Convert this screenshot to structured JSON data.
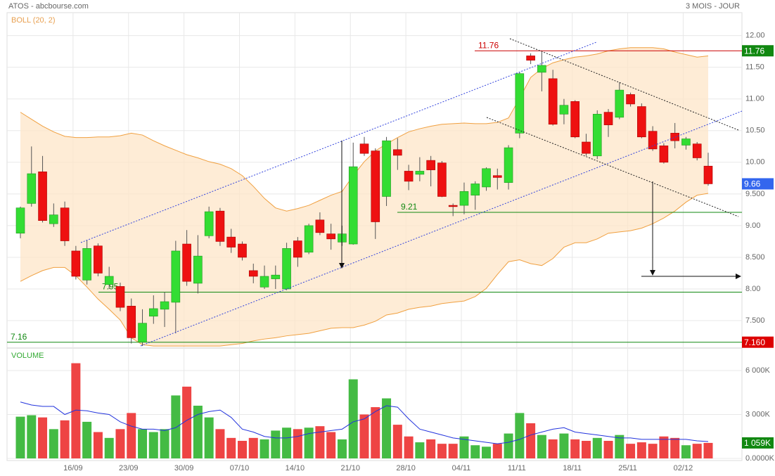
{
  "chart_data": {
    "type": "candlestick",
    "title": "ATOS - abcbourse.com",
    "subtitle": "3 MOIS - JOUR",
    "categories": [
      null,
      null,
      null,
      null,
      null,
      "16/09",
      null,
      null,
      null,
      null,
      "23/09",
      null,
      null,
      null,
      null,
      "30/09",
      null,
      null,
      null,
      null,
      "07/10",
      null,
      null,
      null,
      null,
      "14/10",
      null,
      null,
      null,
      null,
      "21/10",
      null,
      null,
      null,
      null,
      "28/10",
      null,
      null,
      null,
      null,
      "04/11",
      null,
      null,
      null,
      null,
      "11/11",
      null,
      null,
      null,
      null,
      "18/11",
      null,
      null,
      null,
      null,
      "25/11",
      null,
      null,
      null,
      null,
      "02/12",
      null,
      null
    ],
    "open": [
      8.88,
      9.35,
      9.85,
      9.03,
      9.28,
      8.6,
      8.14,
      8.68,
      8.07,
      8.04,
      7.73,
      7.16,
      7.57,
      7.68,
      7.79,
      8.71,
      8.09,
      8.84,
      9.23,
      8.82,
      8.71,
      8.29,
      8.03,
      8.16,
      8.0,
      8.76,
      8.58,
      9.09,
      8.87,
      8.74,
      8.71,
      10.29,
      10.18,
      9.46,
      10.2,
      9.86,
      9.81,
      10.03,
      9.99,
      9.32,
      9.32,
      9.48,
      9.61,
      9.79,
      9.68,
      10.46,
      11.68,
      11.42,
      11.32,
      10.76,
      10.96,
      10.32,
      10.1,
      10.79,
      10.71,
      11.07,
      10.88,
      10.49,
      10.26,
      10.46,
      10.27,
      10.29,
      9.94
    ],
    "high": [
      9.3,
      10.25,
      10.1,
      9.35,
      9.38,
      8.68,
      8.77,
      8.72,
      8.35,
      8.1,
      7.85,
      7.68,
      7.9,
      7.95,
      8.76,
      8.93,
      8.85,
      9.3,
      9.28,
      8.95,
      8.75,
      8.4,
      8.37,
      8.37,
      8.73,
      8.82,
      9.03,
      9.21,
      9.03,
      9.0,
      10.31,
      10.4,
      10.22,
      10.4,
      10.38,
      9.96,
      10.08,
      10.1,
      10.02,
      9.35,
      9.68,
      9.7,
      9.92,
      9.9,
      10.27,
      11.42,
      11.72,
      11.74,
      11.46,
      11.0,
      10.98,
      10.45,
      10.82,
      10.84,
      11.26,
      11.1,
      10.93,
      10.57,
      10.3,
      10.62,
      10.4,
      10.32,
      10.15
    ],
    "low": [
      8.8,
      9.3,
      9.05,
      8.98,
      8.68,
      8.15,
      8.07,
      8.2,
      8.0,
      7.65,
      7.14,
      7.1,
      7.45,
      7.4,
      7.3,
      8.05,
      7.93,
      8.8,
      8.68,
      8.57,
      8.45,
      8.09,
      8.0,
      8.0,
      7.98,
      8.35,
      8.55,
      8.85,
      8.62,
      8.68,
      8.7,
      10.1,
      8.79,
      9.31,
      9.88,
      9.56,
      9.7,
      9.62,
      9.45,
      9.15,
      9.18,
      9.25,
      9.55,
      9.57,
      9.57,
      10.38,
      11.55,
      11.12,
      10.58,
      10.6,
      10.38,
      10.1,
      10.05,
      10.4,
      10.68,
      10.88,
      10.38,
      10.18,
      9.98,
      10.22,
      10.2,
      10.03,
      9.63
    ],
    "close": [
      9.28,
      9.82,
      9.08,
      9.17,
      8.76,
      8.2,
      8.64,
      8.25,
      8.2,
      7.71,
      7.23,
      7.46,
      7.69,
      7.8,
      8.6,
      8.12,
      8.52,
      9.22,
      8.75,
      8.66,
      8.5,
      8.2,
      8.2,
      8.22,
      8.64,
      8.5,
      9.0,
      8.89,
      8.79,
      8.87,
      9.93,
      10.14,
      9.06,
      10.34,
      10.11,
      9.7,
      9.86,
      9.88,
      9.46,
      9.3,
      9.54,
      9.66,
      9.9,
      9.76,
      10.23,
      11.4,
      11.61,
      11.53,
      10.6,
      10.9,
      10.4,
      10.14,
      10.76,
      10.59,
      11.14,
      10.92,
      10.4,
      10.21,
      10.0,
      10.34,
      10.37,
      10.07,
      9.66
    ],
    "up_color": "#33dd33",
    "down_color": "#ee1111",
    "ylim": [
      7.09,
      12.14
    ],
    "yticks": [
      {
        "value": 12,
        "label": "12.00"
      },
      {
        "value": 11.5,
        "label": "11.50"
      },
      {
        "value": 11,
        "label": "11.00"
      },
      {
        "value": 10.5,
        "label": "10.50"
      },
      {
        "value": 10,
        "label": "10.00"
      },
      {
        "value": 9.5,
        "label": "9.500"
      },
      {
        "value": 9,
        "label": "9.00"
      },
      {
        "value": 8.5,
        "label": "8.500"
      },
      {
        "value": 8,
        "label": "8.00"
      },
      {
        "value": 7.5,
        "label": "7.500"
      }
    ],
    "grid": true,
    "bands": {
      "name": "BOLL (20, 2)",
      "color": "#f0a040",
      "fill": "#fde5c8",
      "upper": [
        10.79,
        10.68,
        10.57,
        10.48,
        10.41,
        10.39,
        10.39,
        10.4,
        10.4,
        10.42,
        10.46,
        10.43,
        10.34,
        10.26,
        10.19,
        10.12,
        10.07,
        10.01,
        9.97,
        9.9,
        9.79,
        9.62,
        9.43,
        9.28,
        9.23,
        9.27,
        9.32,
        9.4,
        9.48,
        9.54,
        9.79,
        10.01,
        10.18,
        10.29,
        10.39,
        10.48,
        10.53,
        10.57,
        10.6,
        10.61,
        10.62,
        10.61,
        10.61,
        10.63,
        10.7,
        11.01,
        11.34,
        11.48,
        11.57,
        11.62,
        11.66,
        11.68,
        11.71,
        11.76,
        11.79,
        11.81,
        11.81,
        11.81,
        11.79,
        11.74,
        11.7,
        11.66,
        11.68
      ],
      "lower": [
        8.12,
        8.21,
        8.29,
        8.34,
        8.34,
        8.21,
        8.03,
        7.84,
        7.68,
        7.51,
        7.23,
        7.12,
        7.1,
        7.1,
        7.1,
        7.1,
        7.1,
        7.1,
        7.1,
        7.12,
        7.14,
        7.18,
        7.21,
        7.23,
        7.26,
        7.28,
        7.3,
        7.34,
        7.38,
        7.39,
        7.39,
        7.43,
        7.49,
        7.59,
        7.62,
        7.68,
        7.71,
        7.73,
        7.77,
        7.79,
        7.81,
        7.88,
        8.01,
        8.23,
        8.43,
        8.46,
        8.4,
        8.37,
        8.48,
        8.66,
        8.73,
        8.73,
        8.79,
        8.88,
        8.9,
        8.92,
        8.96,
        9.03,
        9.12,
        9.23,
        9.37,
        9.48,
        9.51
      ]
    },
    "levels": [
      {
        "value": 11.76,
        "color": "#cc0000"
      },
      {
        "value": 9.21,
        "color": "#118811"
      },
      {
        "value": 7.95,
        "color": "#118811"
      },
      {
        "value": 7.16,
        "color": "#118811"
      }
    ],
    "price_tags": [
      {
        "value": 11.76,
        "color": "#118811"
      },
      {
        "value": 9.66,
        "color": "#3366ee"
      },
      {
        "value": 7.16,
        "label": "7.160",
        "color": "#dd0000"
      }
    ],
    "volume": {
      "name": "VOLUME",
      "values": [
        2850,
        2950,
        2800,
        2000,
        2600,
        6500,
        2500,
        1800,
        1400,
        2000,
        3100,
        2000,
        1800,
        2000,
        4300,
        4900,
        3600,
        2800,
        2000,
        1400,
        1200,
        1400,
        1300,
        1900,
        2100,
        2000,
        2100,
        2200,
        1800,
        1300,
        5400,
        3000,
        3500,
        4100,
        2300,
        1500,
        1100,
        1300,
        1000,
        1000,
        1500,
        900,
        800,
        1000,
        1700,
        3100,
        2400,
        1600,
        1300,
        1700,
        1300,
        1200,
        1400,
        1200,
        1600,
        1000,
        1100,
        1000,
        1500,
        1400,
        900,
        1000,
        1059
      ],
      "average": [
        3850,
        3650,
        3550,
        3550,
        3000,
        3300,
        3250,
        3100,
        3000,
        2500,
        2200,
        2000,
        2000,
        1900,
        2100,
        2600,
        3000,
        3200,
        3300,
        2800,
        2000,
        1800,
        1500,
        1400,
        1400,
        1500,
        1700,
        1800,
        1900,
        2000,
        2500,
        2700,
        3200,
        3600,
        3500,
        2700,
        2000,
        1800,
        1600,
        1400,
        1300,
        1200,
        1100,
        1000,
        1100,
        1300,
        1600,
        1800,
        2000,
        2100,
        1800,
        1700,
        1600,
        1500,
        1400,
        1400,
        1300,
        1300,
        1300,
        1300,
        1300,
        1200,
        1150
      ],
      "average_color": "#2233dd",
      "up_color": "#44bb44",
      "down_color": "#ee4444",
      "ylim": [
        0,
        7440
      ],
      "yticks": [
        {
          "value": 6000,
          "label": "6 000K"
        },
        {
          "value": 3000,
          "label": "3 000K"
        },
        {
          "value": 0,
          "label": "0.0000K"
        }
      ],
      "tag": {
        "value": 1059,
        "label": "1 059K",
        "color": "#118811"
      }
    }
  }
}
